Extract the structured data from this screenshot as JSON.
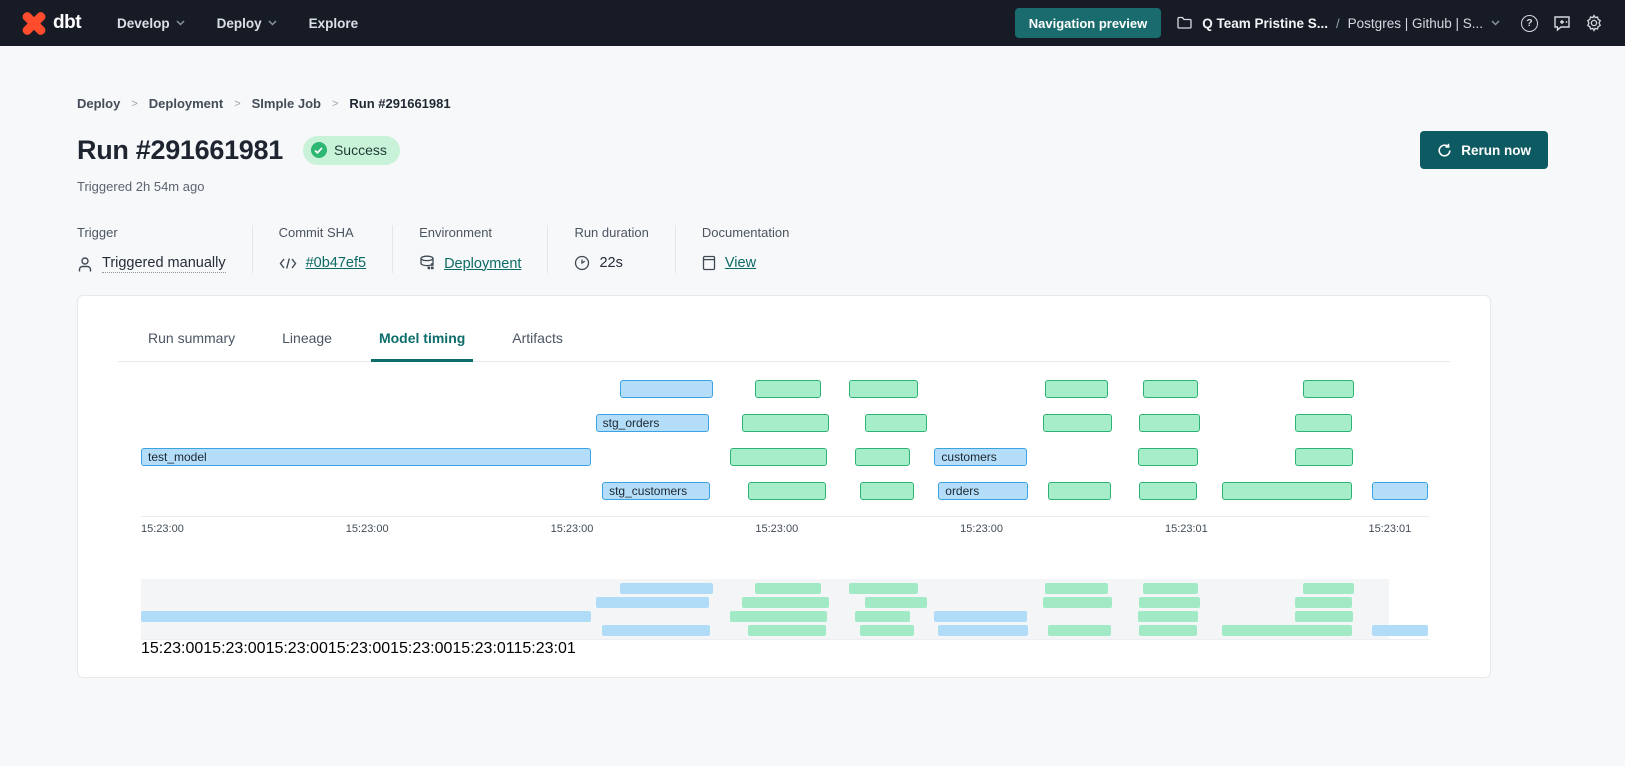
{
  "navbar": {
    "logo_text": "dbt",
    "items": [
      {
        "label": "Develop",
        "has_chevron": true
      },
      {
        "label": "Deploy",
        "has_chevron": true
      },
      {
        "label": "Explore",
        "has_chevron": false
      }
    ],
    "preview_button": "Navigation preview",
    "account": "Q Team Pristine S...",
    "separator": "/",
    "project": "Postgres | Github | S...",
    "help_glyph": "?"
  },
  "breadcrumb": {
    "items": [
      "Deploy",
      "Deployment",
      "SImple Job",
      "Run #291661981"
    ],
    "separator": ">"
  },
  "header": {
    "title": "Run #291661981",
    "status": "Success",
    "triggered": "Triggered 2h 54m ago",
    "rerun_button": "Rerun now"
  },
  "meta": {
    "cols": [
      {
        "label": "Trigger",
        "value": "Triggered manually",
        "icon": "person-icon"
      },
      {
        "label": "Commit SHA",
        "value": "#0b47ef5",
        "icon": "code-icon"
      },
      {
        "label": "Environment",
        "value": "Deployment",
        "icon": "database-icon"
      },
      {
        "label": "Run duration",
        "value": "22s",
        "icon": "clock-icon"
      },
      {
        "label": "Documentation",
        "value": "View",
        "icon": "document-icon"
      }
    ]
  },
  "tabs": [
    {
      "label": "Run summary",
      "active": false
    },
    {
      "label": "Lineage",
      "active": false
    },
    {
      "label": "Model timing",
      "active": true
    },
    {
      "label": "Artifacts",
      "active": false
    }
  ],
  "chart_data": {
    "type": "gantt",
    "title": "Model timing",
    "colors": {
      "blue_fill": "#b3ddf8",
      "blue_border": "#3ba2e3",
      "green_fill": "#a6eeca",
      "green_border": "#2eb273"
    },
    "axis_ticks": [
      {
        "label": "15:23:00",
        "pos": 0
      },
      {
        "label": "15:23:00",
        "pos": 15.9
      },
      {
        "label": "15:23:00",
        "pos": 31.8
      },
      {
        "label": "15:23:00",
        "pos": 47.7
      },
      {
        "label": "15:23:00",
        "pos": 63.6
      },
      {
        "label": "15:23:01",
        "pos": 79.5
      },
      {
        "label": "15:23:01",
        "pos": 95.3
      }
    ],
    "rows": [
      [
        {
          "l": 37.2,
          "w": 7.2,
          "c": "blue"
        },
        {
          "l": 47.7,
          "w": 5.1,
          "c": "green"
        },
        {
          "l": 55.0,
          "w": 5.3,
          "c": "green"
        },
        {
          "l": 70.2,
          "w": 4.9,
          "c": "green"
        },
        {
          "l": 77.8,
          "w": 4.3,
          "c": "green"
        },
        {
          "l": 90.2,
          "w": 4.0,
          "c": "green"
        }
      ],
      [
        {
          "l": 35.3,
          "w": 8.8,
          "c": "blue",
          "label": "stg_orders"
        },
        {
          "l": 46.7,
          "w": 6.7,
          "c": "green"
        },
        {
          "l": 56.2,
          "w": 4.8,
          "c": "green"
        },
        {
          "l": 70.0,
          "w": 5.4,
          "c": "green"
        },
        {
          "l": 77.5,
          "w": 4.7,
          "c": "green"
        },
        {
          "l": 89.6,
          "w": 4.4,
          "c": "green"
        }
      ],
      [
        {
          "l": 0,
          "w": 34.9,
          "c": "blue",
          "label": "test_model"
        },
        {
          "l": 45.7,
          "w": 7.6,
          "c": "green"
        },
        {
          "l": 55.4,
          "w": 4.3,
          "c": "green"
        },
        {
          "l": 61.6,
          "w": 7.2,
          "c": "blue",
          "label": "customers"
        },
        {
          "l": 77.4,
          "w": 4.7,
          "c": "green"
        },
        {
          "l": 89.6,
          "w": 4.5,
          "c": "green"
        }
      ],
      [
        {
          "l": 35.8,
          "w": 8.4,
          "c": "blue",
          "label": "stg_customers"
        },
        {
          "l": 47.1,
          "w": 6.1,
          "c": "green"
        },
        {
          "l": 55.8,
          "w": 4.2,
          "c": "green"
        },
        {
          "l": 61.9,
          "w": 7.0,
          "c": "blue",
          "label": "orders"
        },
        {
          "l": 70.4,
          "w": 4.9,
          "c": "green"
        },
        {
          "l": 77.5,
          "w": 4.5,
          "c": "green"
        },
        {
          "l": 83.9,
          "w": 10.1,
          "c": "green"
        },
        {
          "l": 95.6,
          "w": 4.3,
          "c": "blue"
        }
      ]
    ]
  }
}
